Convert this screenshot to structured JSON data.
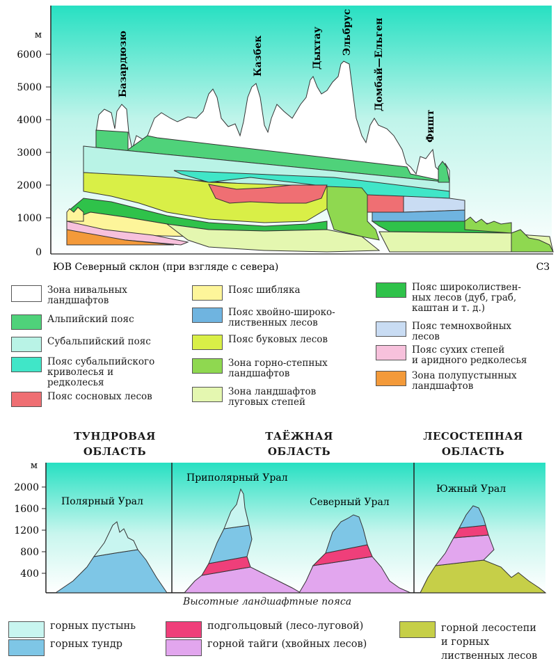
{
  "top": {
    "y_unit": "м",
    "y_ticks": [
      "6000",
      "5000",
      "4000",
      "3000",
      "2000",
      "1000",
      "0"
    ],
    "peaks": [
      "Базардюзю",
      "Казбек",
      "Дыхтау",
      "Эльбрус",
      "Домбай—Ельген",
      "Фишт"
    ],
    "axis_left": "ЮВ Северный склон (при взгляде с севера)",
    "axis_right": "СЗ"
  },
  "legend_top": [
    {
      "label": "Зона нивальных\nландшафтов",
      "color": "#ffffff"
    },
    {
      "label": "Альпийский пояс",
      "color": "#4fd27a"
    },
    {
      "label": "Субальпийский пояс",
      "color": "#b9f3e6"
    },
    {
      "label": "Пояс субальпийского\nкриволесья и\nредколесья",
      "color": "#40e6c8"
    },
    {
      "label": "Пояс сосновых лесов",
      "color": "#ef6f73"
    },
    {
      "label": "Пояс шибляка",
      "color": "#fdf59a"
    },
    {
      "label": "Пояс хвойно-широко-\nлиственных лесов",
      "color": "#6fb4e0"
    },
    {
      "label": "Пояс буковых лесов",
      "color": "#d9ef47"
    },
    {
      "label": "Зона горно-степных\nландшафтов",
      "color": "#8fd850"
    },
    {
      "label": "Зона ландшафтов\nлуговых степей",
      "color": "#e4f7b0"
    },
    {
      "label": "Пояс широколиствен-\nных лесов (дуб, граб,\nкаштан и т. д.)",
      "color": "#2fc24a"
    },
    {
      "label": "Пояс темнохвойных\nлесов",
      "color": "#c9dcf3"
    },
    {
      "label": "Пояс сухих степей\nи аридного редколесья",
      "color": "#f7c1dc"
    },
    {
      "label": "Зона полупустынных\nландшафтов",
      "color": "#f39a3a"
    }
  ],
  "regions": [
    {
      "title": "ТУНДРОВАЯ\nОБЛАСТЬ",
      "mountain": "Полярный Урал"
    },
    {
      "title": "ТАЁЖНАЯ\nОБЛАСТЬ",
      "mountain": "Приполярный Урал",
      "mountain2": "Северный Урал"
    },
    {
      "title": "ЛЕСОСТЕПНАЯ\nОБЛАСТЬ",
      "mountain": "Южный Урал"
    }
  ],
  "bottom": {
    "y_unit": "м",
    "y_ticks": [
      "2000",
      "1600",
      "1200",
      "800",
      "400"
    ],
    "caption": "Высотные ландшафтные пояса"
  },
  "legend_bottom": [
    {
      "label": "горных пустынь",
      "color": "#c8f5f0"
    },
    {
      "label": "горных тундр",
      "color": "#7ec6e6"
    },
    {
      "label": "подгольцовый (лесо-луговой)",
      "color": "#ef3f7a"
    },
    {
      "label": "горной тайги (хвойных лесов)",
      "color": "#e2a6ee"
    },
    {
      "label": "горной лесостепи\nи горных\nлиственных лесов",
      "color": "#c6cf48"
    }
  ]
}
